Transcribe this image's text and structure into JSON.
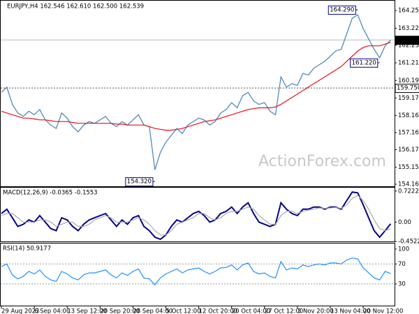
{
  "chart_data": [
    {
      "type": "line",
      "title": "EURJPY,H4 162.546 162.610 162.500 162.539",
      "watermark": "ActionForex.com",
      "categories": [
        "29 Aug 2023",
        null,
        null,
        null,
        null,
        null,
        "6 Sep 04:00",
        null,
        null,
        null,
        null,
        null,
        "13 Sep 12:00",
        null,
        null,
        null,
        null,
        null,
        "20 Sep 20:00",
        null,
        null,
        null,
        null,
        null,
        "28 Sep 04:00",
        null,
        null,
        null,
        null,
        null,
        "5 Oct 12:00",
        null,
        null,
        null,
        null,
        null,
        "12 Oct 20:00",
        null,
        null,
        null,
        null,
        null,
        "20 Oct 04:00",
        null,
        null,
        null,
        null,
        null,
        "27 Oct 12:00",
        null,
        null,
        null,
        null,
        null,
        "3 Nov 20:00",
        null,
        null,
        null,
        null,
        null,
        "13 Nov 04:00",
        null,
        null,
        null,
        null,
        null,
        "20 Nov 12:00",
        null,
        null,
        null,
        null,
        null
      ],
      "series": [
        {
          "color": "#4682b4",
          "values": [
            159.5,
            159.8,
            158.8,
            158.3,
            158.1,
            158.4,
            158.2,
            158.5,
            157.9,
            157.6,
            157.4,
            158.3,
            158.0,
            157.5,
            157.2,
            157.6,
            157.8,
            157.7,
            157.9,
            158.1,
            157.7,
            157.5,
            157.8,
            157.6,
            157.9,
            158.2,
            157.6,
            157.5,
            155.0,
            156.0,
            156.6,
            157.0,
            157.4,
            157.1,
            157.6,
            157.8,
            158.0,
            157.9,
            157.6,
            157.8,
            158.3,
            158.5,
            158.9,
            158.6,
            159.3,
            159.5,
            159.0,
            158.8,
            158.9,
            158.4,
            158.2,
            160.4,
            159.8,
            160.0,
            159.9,
            160.6,
            160.5,
            160.9,
            161.1,
            161.3,
            161.6,
            161.9,
            162.0,
            162.9,
            163.8,
            164.0,
            163.2,
            162.6,
            162.0,
            161.5,
            162.2,
            162.54
          ]
        },
        {
          "color": "#e8101a",
          "values": [
            158.4,
            158.3,
            158.2,
            158.1,
            158.0,
            158.0,
            157.95,
            157.9,
            157.9,
            157.85,
            157.8,
            157.8,
            157.8,
            157.75,
            157.7,
            157.7,
            157.7,
            157.7,
            157.7,
            157.7,
            157.7,
            157.65,
            157.65,
            157.6,
            157.6,
            157.6,
            157.6,
            157.5,
            157.4,
            157.35,
            157.3,
            157.3,
            157.35,
            157.4,
            157.5,
            157.6,
            157.7,
            157.8,
            157.85,
            157.9,
            158.0,
            158.1,
            158.2,
            158.3,
            158.4,
            158.5,
            158.55,
            158.6,
            158.6,
            158.6,
            158.65,
            158.8,
            159.0,
            159.2,
            159.4,
            159.6,
            159.8,
            160.0,
            160.2,
            160.4,
            160.6,
            160.8,
            161.0,
            161.3,
            161.6,
            161.9,
            162.1,
            162.2,
            162.2,
            162.2,
            162.3,
            162.4
          ]
        }
      ],
      "ylim": [
        154.0,
        164.82
      ],
      "yticks": [
        {
          "value": 164.25,
          "label": "164.250"
        },
        {
          "value": 163.22,
          "label": "163.220"
        },
        {
          "value": 162.23,
          "label": "162.230"
        },
        {
          "value": 161.21,
          "label": "161.210"
        },
        {
          "value": 160.19,
          "label": "160.190"
        },
        {
          "value": 159.17,
          "label": "159.170"
        },
        {
          "value": 158.16,
          "label": "158.160"
        },
        {
          "value": 157.16,
          "label": "157.160"
        },
        {
          "value": 156.17,
          "label": "156.170"
        },
        {
          "value": 155.15,
          "label": "155.150"
        },
        {
          "value": 154.16,
          "label": "154.160"
        }
      ],
      "level_line": {
        "value": 159.75,
        "label": "159.750"
      },
      "last_price": {
        "value": 162.539,
        "label": "162.539"
      },
      "annotations": [
        {
          "x": 65,
          "value": 164.29,
          "label": "164.290"
        },
        {
          "x": 69,
          "value": 161.22,
          "label": "161.220"
        },
        {
          "x": 28,
          "value": 154.32,
          "label": "154.320"
        }
      ]
    },
    {
      "type": "line",
      "title": "MACD(12,26,9) -0.0365 -0.1553",
      "series": [
        {
          "color": "#00008b",
          "values": [
            0.2,
            0.3,
            0.1,
            -0.1,
            -0.05,
            0.05,
            0.0,
            0.15,
            0.0,
            -0.15,
            -0.2,
            0.1,
            0.05,
            -0.1,
            -0.2,
            -0.05,
            0.05,
            0.1,
            0.15,
            0.2,
            0.05,
            -0.1,
            0.05,
            -0.05,
            0.1,
            0.15,
            -0.1,
            -0.2,
            -0.35,
            -0.4,
            -0.3,
            -0.1,
            0.05,
            0.0,
            0.1,
            0.2,
            0.25,
            0.15,
            0.0,
            0.05,
            0.2,
            0.25,
            0.35,
            0.2,
            0.35,
            0.45,
            0.2,
            0.0,
            -0.05,
            -0.1,
            -0.05,
            0.45,
            0.3,
            0.2,
            0.15,
            0.3,
            0.3,
            0.35,
            0.35,
            0.3,
            0.35,
            0.35,
            0.3,
            0.5,
            0.7,
            0.68,
            0.4,
            0.1,
            -0.2,
            -0.35,
            -0.2,
            -0.04
          ]
        },
        {
          "color": "#a9a9a9",
          "values": [
            0.15,
            0.2,
            0.2,
            0.1,
            0.0,
            0.0,
            0.0,
            0.05,
            0.05,
            0.0,
            -0.1,
            -0.05,
            0.0,
            0.0,
            -0.1,
            -0.1,
            -0.05,
            0.05,
            0.1,
            0.15,
            0.1,
            0.0,
            0.0,
            0.0,
            0.05,
            0.1,
            0.05,
            -0.05,
            -0.2,
            -0.3,
            -0.3,
            -0.2,
            -0.05,
            0.0,
            0.05,
            0.1,
            0.2,
            0.2,
            0.1,
            0.05,
            0.1,
            0.2,
            0.25,
            0.25,
            0.3,
            0.35,
            0.3,
            0.15,
            0.05,
            -0.05,
            -0.05,
            0.15,
            0.25,
            0.25,
            0.2,
            0.25,
            0.28,
            0.3,
            0.33,
            0.32,
            0.33,
            0.34,
            0.32,
            0.4,
            0.55,
            0.62,
            0.5,
            0.3,
            0.05,
            -0.15,
            -0.2,
            -0.155
          ]
        }
      ],
      "ylim": [
        -0.466,
        0.8
      ],
      "yticks": [
        0.7222,
        {
          "value": 0,
          "label": "0.00"
        },
        -0.4522
      ]
    },
    {
      "type": "line",
      "title": "RSI(14) 50.9177",
      "series": [
        {
          "color": "#1e90ff",
          "values": [
            65,
            70,
            48,
            40,
            45,
            55,
            50,
            58,
            45,
            38,
            35,
            55,
            50,
            42,
            38,
            48,
            52,
            52,
            55,
            58,
            48,
            42,
            52,
            47,
            55,
            60,
            42,
            40,
            28,
            42,
            50,
            55,
            60,
            52,
            58,
            60,
            62,
            55,
            50,
            55,
            62,
            63,
            68,
            58,
            68,
            72,
            55,
            50,
            52,
            45,
            42,
            75,
            58,
            62,
            60,
            68,
            65,
            68,
            70,
            68,
            72,
            72,
            70,
            78,
            82,
            80,
            62,
            52,
            42,
            38,
            55,
            51
          ]
        }
      ],
      "ylim": [
        -15,
        111
      ],
      "yticks": [
        100,
        70,
        30
      ],
      "levels": [
        70,
        30
      ]
    }
  ]
}
